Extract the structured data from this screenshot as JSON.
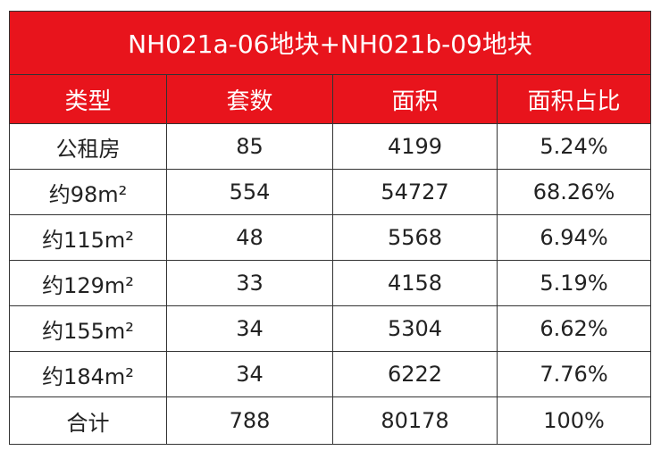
{
  "table": {
    "title": "NH021a-06地块+NH021b-09地块",
    "header": [
      "类型",
      "套数",
      "面积",
      "面积占比"
    ],
    "rows": [
      [
        "公租房",
        "85",
        "4199",
        "5.24%"
      ],
      [
        "约98m²",
        "554",
        "54727",
        "68.26%"
      ],
      [
        "约115m²",
        "48",
        "5568",
        "6.94%"
      ],
      [
        "约129m²",
        "33",
        "4158",
        "5.19%"
      ],
      [
        "约155m²",
        "34",
        "5304",
        "6.62%"
      ],
      [
        "约184m²",
        "34",
        "6222",
        "7.76%"
      ],
      [
        "合计",
        "788",
        "80178",
        "100%"
      ]
    ]
  }
}
